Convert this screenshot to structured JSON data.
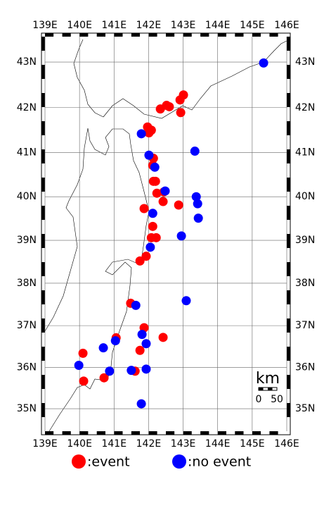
{
  "chart_data": {
    "type": "scatter",
    "xlim": [
      139,
      146
    ],
    "ylim": [
      34.45,
      43.55
    ],
    "projection": "mercator",
    "grid": true,
    "xticks": [
      {
        "value": 139,
        "label": "139E"
      },
      {
        "value": 140,
        "label": "140E"
      },
      {
        "value": 141,
        "label": "141E"
      },
      {
        "value": 142,
        "label": "142E"
      },
      {
        "value": 143,
        "label": "143E"
      },
      {
        "value": 144,
        "label": "144E"
      },
      {
        "value": 145,
        "label": "145E"
      },
      {
        "value": 146,
        "label": "146E"
      }
    ],
    "yticks": [
      {
        "value": 35,
        "label": "35N"
      },
      {
        "value": 36,
        "label": "36N"
      },
      {
        "value": 37,
        "label": "37N"
      },
      {
        "value": 38,
        "label": "38N"
      },
      {
        "value": 39,
        "label": "39N"
      },
      {
        "value": 40,
        "label": "40N"
      },
      {
        "value": 41,
        "label": "41N"
      },
      {
        "value": 42,
        "label": "42N"
      },
      {
        "value": 43,
        "label": "43N"
      }
    ],
    "series": [
      {
        "name": ":event",
        "color": "#ff0000",
        "x": [
          143.01,
          142.91,
          142.52,
          142.6,
          142.34,
          141.97,
          142.08,
          142.01,
          142.93,
          142.14,
          142.12,
          142.14,
          142.2,
          142.44,
          142.42,
          142.24,
          142.87,
          141.87,
          142.12,
          142.22,
          142.08,
          141.93,
          141.75,
          141.48,
          141.87,
          141.06,
          142.42,
          141.75,
          140.1,
          140.12,
          140.71,
          141.61
        ],
        "y": [
          42.28,
          42.17,
          42.05,
          42.02,
          41.97,
          41.57,
          41.5,
          41.44,
          41.89,
          40.87,
          40.71,
          40.35,
          40.35,
          40.11,
          39.89,
          40.08,
          39.81,
          39.73,
          39.32,
          39.06,
          39.06,
          38.63,
          38.52,
          37.53,
          36.95,
          36.71,
          36.72,
          36.41,
          36.34,
          35.67,
          35.75,
          35.91
        ]
      },
      {
        "name": ":no event",
        "color": "#0000ff",
        "x": [
          145.33,
          141.79,
          142.01,
          142.18,
          143.34,
          143.38,
          143.42,
          143.44,
          142.48,
          142.12,
          142.95,
          142.05,
          143.09,
          141.63,
          141.81,
          141.93,
          140.69,
          141.04,
          141.93,
          141.5,
          140.87,
          139.98,
          141.79
        ],
        "y": [
          42.98,
          41.42,
          40.94,
          40.67,
          41.03,
          40.0,
          39.84,
          39.51,
          40.13,
          39.62,
          39.1,
          38.84,
          37.59,
          37.48,
          36.79,
          36.57,
          36.47,
          36.64,
          35.96,
          35.93,
          35.91,
          36.05,
          35.12
        ]
      }
    ],
    "scale_bar": {
      "unit": "km",
      "labels": [
        "0",
        "50"
      ]
    }
  }
}
